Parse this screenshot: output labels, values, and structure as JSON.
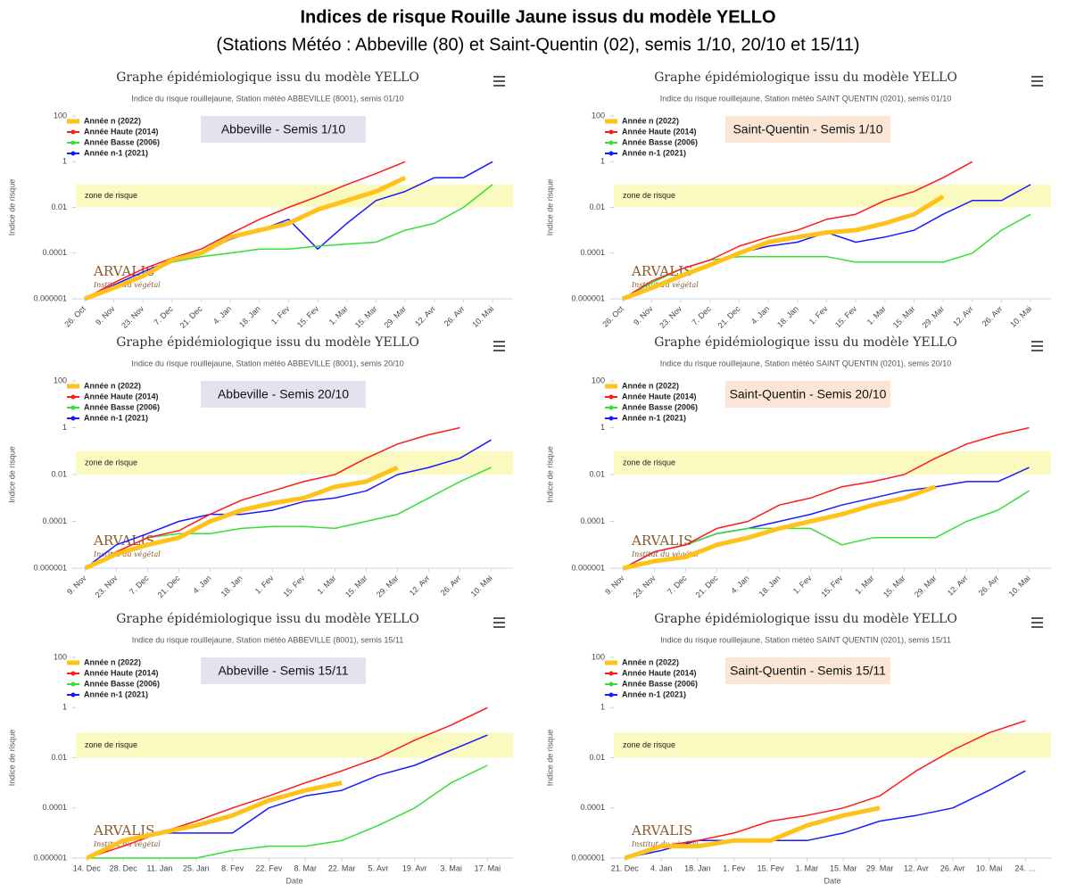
{
  "title": "Indices de risque Rouille Jaune issus du modèle YELLO",
  "subtitle": "(Stations Météo : Abbeville (80) et Saint-Quentin (02), semis 1/10, 20/10 et 15/11)",
  "chart_data": [
    {
      "type": "line",
      "title": "Graphe épidémiologique issu du modèle YELLO",
      "subtitle": "Indice du risque rouillejaune, Station météo ABBEVILLE (8001), semis 01/10",
      "box_label": "Abbeville - Semis 1/10",
      "box_color": "#e5e1ef",
      "ylabel": "Indice de risque",
      "log_y": true,
      "grid": false,
      "ylim": [
        1e-06,
        100
      ],
      "yticks": [
        {
          "value": 1e-06,
          "label": "0.000001"
        },
        0.0001,
        0.01,
        1,
        100
      ],
      "risk_zone": [
        0.01,
        0.1
      ],
      "risk_label": "zone de risque",
      "logo": "ARVALIS",
      "logo_sub": "Institut du végétal",
      "categories": [
        "26. Oct",
        "9. Nov",
        "23. Nov",
        "7. Dec",
        "21. Dec",
        "4. Jan",
        "18. Jan",
        "1. Fev",
        "15. Fev",
        "1. Mar",
        "15. Mar",
        "29. Mar",
        "12. Avr",
        "26. Avr",
        "10. Mai"
      ],
      "series": [
        {
          "name": "Année n (2022)",
          "color": "#ffc21a",
          "line_width": 5,
          "values": [
            1e-06,
            3e-06,
            1e-05,
            5e-05,
            0.0001,
            0.0005,
            0.001,
            0.002,
            0.008,
            0.02,
            0.05,
            0.2,
            null,
            null,
            null
          ]
        },
        {
          "name": "Année Haute (2014)",
          "color": "#ff1a1a",
          "line_width": 1.5,
          "values": [
            1e-06,
            5e-06,
            2e-05,
            6e-05,
            0.00015,
            0.0007,
            0.003,
            0.01,
            0.03,
            0.1,
            0.3,
            1,
            null,
            null,
            null
          ]
        },
        {
          "name": "Année Basse (2006)",
          "color": "#33e033",
          "line_width": 1.5,
          "values": [
            1e-06,
            3e-06,
            1e-05,
            4e-05,
            7e-05,
            0.0001,
            0.00015,
            0.00015,
            0.0002,
            0.00025,
            0.0003,
            0.001,
            0.002,
            0.01,
            0.1
          ]
        },
        {
          "name": "Année n-1 (2021)",
          "color": "#1a1aff",
          "line_width": 1.5,
          "values": [
            1e-06,
            4e-06,
            1.5e-05,
            5e-05,
            0.0001,
            0.0004,
            0.001,
            0.003,
            0.00015,
            0.002,
            0.02,
            0.05,
            0.2,
            0.2,
            1
          ]
        }
      ]
    },
    {
      "type": "line",
      "title": "Graphe épidémiologique issu du modèle YELLO",
      "subtitle": "Indice du risque rouillejaune, Station météo SAINT QUENTIN (0201), semis 01/10",
      "box_label": "Saint-Quentin - Semis 1/10",
      "box_color": "#fbe5d6",
      "ylabel": "Indice de risque",
      "log_y": true,
      "grid": false,
      "ylim": [
        1e-06,
        100
      ],
      "yticks": [
        {
          "value": 1e-06,
          "label": "0.000001"
        },
        0.0001,
        0.01,
        1,
        100
      ],
      "risk_zone": [
        0.01,
        0.1
      ],
      "risk_label": "zone de risque",
      "logo": "ARVALIS",
      "logo_sub": "Institut du végétal",
      "categories": [
        "26. Oct",
        "9. Nov",
        "23. Nov",
        "7. Dec",
        "21. Dec",
        "4. Jan",
        "18. Jan",
        "1. Fev",
        "15. Fev",
        "1. Mar",
        "15. Mar",
        "29. Mar",
        "12. Avr",
        "26. Avr",
        "10. Mai"
      ],
      "series": [
        {
          "name": "Année n (2022)",
          "color": "#ffc21a",
          "line_width": 5,
          "values": [
            1e-06,
            3e-06,
            1e-05,
            3e-05,
            0.0001,
            0.0003,
            0.0005,
            0.0008,
            0.001,
            0.002,
            0.005,
            0.03,
            null,
            null,
            null
          ]
        },
        {
          "name": "Année Haute (2014)",
          "color": "#ff1a1a",
          "line_width": 1.5,
          "values": [
            1e-06,
            6e-06,
            2e-05,
            5e-05,
            0.0002,
            0.0005,
            0.001,
            0.003,
            0.005,
            0.02,
            0.05,
            0.2,
            1,
            null,
            null
          ]
        },
        {
          "name": "Année Basse (2006)",
          "color": "#33e033",
          "line_width": 1.5,
          "values": [
            1e-06,
            5e-06,
            2e-05,
            5e-05,
            7e-05,
            7e-05,
            7e-05,
            7e-05,
            4e-05,
            4e-05,
            4e-05,
            4e-05,
            0.0001,
            0.001,
            0.005
          ]
        },
        {
          "name": "Année n-1 (2021)",
          "color": "#1a1aff",
          "line_width": 1.5,
          "values": [
            1e-06,
            3e-06,
            1e-05,
            3e-05,
            0.0001,
            0.0002,
            0.0003,
            0.0008,
            0.0003,
            0.0005,
            0.001,
            0.005,
            0.02,
            0.02,
            0.1
          ]
        }
      ]
    },
    {
      "type": "line",
      "title": "Graphe épidémiologique issu du modèle YELLO",
      "subtitle": "Indice du risque rouillejaune, Station météo ABBEVILLE (8001), semis 20/10",
      "box_label": "Abbeville - Semis 20/10",
      "box_color": "#e5e1ef",
      "ylabel": "Indice de risque",
      "log_y": true,
      "grid": false,
      "ylim": [
        1e-06,
        100
      ],
      "yticks": [
        {
          "value": 1e-06,
          "label": "0.000001"
        },
        0.0001,
        0.01,
        1,
        100
      ],
      "risk_zone": [
        0.01,
        0.1
      ],
      "risk_label": "zone de risque",
      "logo": "ARVALIS",
      "logo_sub": "Institut du végétal",
      "categories": [
        "9. Nov",
        "23. Nov",
        "7. Dec",
        "21. Dec",
        "4. Jan",
        "18. Jan",
        "1. Fev",
        "15. Fev",
        "1. Mar",
        "15. Mar",
        "29. Mar",
        "12. Avr",
        "26. Avr",
        "10. Mai"
      ],
      "series": [
        {
          "name": "Année n (2022)",
          "color": "#ffc21a",
          "line_width": 5,
          "values": [
            1e-06,
            4e-06,
            1e-05,
            2e-05,
            0.0001,
            0.0003,
            0.0006,
            0.001,
            0.003,
            0.005,
            0.02,
            null,
            null,
            null
          ]
        },
        {
          "name": "Année Haute (2014)",
          "color": "#ff1a1a",
          "line_width": 1.5,
          "values": [
            1e-06,
            5e-06,
            2e-05,
            4e-05,
            0.0002,
            0.0008,
            0.002,
            0.005,
            0.01,
            0.05,
            0.2,
            0.5,
            1,
            null
          ]
        },
        {
          "name": "Année Basse (2006)",
          "color": "#33e033",
          "line_width": 1.5,
          "values": [
            1e-06,
            5e-06,
            2e-05,
            3e-05,
            3e-05,
            5e-05,
            6e-05,
            6e-05,
            5e-05,
            0.0001,
            0.0002,
            0.001,
            0.005,
            0.02
          ]
        },
        {
          "name": "Année n-1 (2021)",
          "color": "#1a1aff",
          "line_width": 1.5,
          "values": [
            1e-06,
            1e-05,
            3e-05,
            0.0001,
            0.0002,
            0.0002,
            0.0003,
            0.0007,
            0.001,
            0.002,
            0.01,
            0.02,
            0.05,
            0.3
          ]
        }
      ]
    },
    {
      "type": "line",
      "title": "Graphe épidémiologique issu du modèle YELLO",
      "subtitle": "Indice du risque rouillejaune, Station météo SAINT QUENTIN (0201), semis 20/10",
      "box_label": "Saint-Quentin - Semis 20/10",
      "box_color": "#fbe5d6",
      "ylabel": "Indice de risque",
      "log_y": true,
      "grid": false,
      "ylim": [
        1e-06,
        100
      ],
      "yticks": [
        {
          "value": 1e-06,
          "label": "0.000001"
        },
        0.0001,
        0.01,
        1,
        100
      ],
      "risk_zone": [
        0.01,
        0.1
      ],
      "risk_label": "zone de risque",
      "logo": "ARVALIS",
      "logo_sub": "Institut du végétal",
      "categories": [
        "9. Nov",
        "23. Nov",
        "7. Dec",
        "21. Dec",
        "4. Jan",
        "18. Jan",
        "1. Fev",
        "15. Fev",
        "1. Mar",
        "15. Mar",
        "29. Mar",
        "12. Avr",
        "26. Avr",
        "10. Mai"
      ],
      "series": [
        {
          "name": "Année n (2022)",
          "color": "#ffc21a",
          "line_width": 5,
          "values": [
            1e-06,
            2e-06,
            3e-06,
            1e-05,
            2e-05,
            5e-05,
            0.0001,
            0.0002,
            0.0005,
            0.001,
            0.003,
            null,
            null,
            null
          ]
        },
        {
          "name": "Année Haute (2014)",
          "color": "#ff1a1a",
          "line_width": 1.5,
          "values": [
            1e-06,
            5e-06,
            1e-05,
            5e-05,
            0.0001,
            0.0005,
            0.001,
            0.003,
            0.005,
            0.01,
            0.05,
            0.2,
            0.5,
            1
          ]
        },
        {
          "name": "Année Basse (2006)",
          "color": "#33e033",
          "line_width": 1.5,
          "values": [
            1e-06,
            5e-06,
            1e-05,
            3e-05,
            5e-05,
            5e-05,
            5e-05,
            1e-05,
            2e-05,
            2e-05,
            2e-05,
            0.0001,
            0.0003,
            0.002
          ]
        },
        {
          "name": "Année n-1 (2021)",
          "color": "#1a1aff",
          "line_width": 1.5,
          "values": [
            1e-06,
            5e-06,
            1e-05,
            3e-05,
            5e-05,
            0.0001,
            0.0002,
            0.0005,
            0.001,
            0.002,
            0.003,
            0.005,
            0.005,
            0.02
          ]
        }
      ]
    },
    {
      "type": "line",
      "title": "Graphe épidémiologique issu du modèle YELLO",
      "subtitle": "Indice du risque rouillejaune, Station météo ABBEVILLE (8001), semis 15/11",
      "box_label": "Abbeville - Semis 15/11",
      "box_color": "#e5e1ef",
      "ylabel": "Indice de risque",
      "xlabel": "Date",
      "log_y": true,
      "grid": false,
      "ylim": [
        1e-06,
        100
      ],
      "yticks": [
        {
          "value": 1e-06,
          "label": "0.000001"
        },
        0.0001,
        0.01,
        1,
        100
      ],
      "risk_zone": [
        0.01,
        0.1
      ],
      "risk_label": "zone de risque",
      "logo": "ARVALIS",
      "logo_sub": "Institut du végétal",
      "categories": [
        "14. Dec",
        "28. Dec",
        "11. Jan",
        "25. Jan",
        "8. Fev",
        "22. Fev",
        "8. Mar",
        "22. Mar",
        "5. Avr",
        "19. Avr",
        "3. Mai",
        "17. Mai"
      ],
      "series": [
        {
          "name": "Année n (2022)",
          "color": "#ffc21a",
          "line_width": 5,
          "values": [
            1e-06,
            5e-06,
            1e-05,
            2e-05,
            5e-05,
            0.0002,
            0.0005,
            0.001,
            null,
            null,
            null,
            null
          ]
        },
        {
          "name": "Année Haute (2014)",
          "color": "#ff1a1a",
          "line_width": 1.5,
          "values": [
            1e-06,
            3e-06,
            1e-05,
            3e-05,
            0.0001,
            0.0003,
            0.001,
            0.003,
            0.01,
            0.05,
            0.2,
            1
          ]
        },
        {
          "name": "Année Basse (2006)",
          "color": "#33e033",
          "line_width": 1.5,
          "values": [
            1e-06,
            1e-06,
            1e-06,
            1e-06,
            2e-06,
            3e-06,
            3e-06,
            5e-06,
            2e-05,
            0.0001,
            0.001,
            0.005
          ]
        },
        {
          "name": "Année n-1 (2021)",
          "color": "#1a1aff",
          "line_width": 1.5,
          "values": [
            1e-06,
            5e-06,
            1e-05,
            1e-05,
            1e-05,
            0.0001,
            0.0003,
            0.0005,
            0.002,
            0.005,
            0.02,
            0.08
          ]
        }
      ]
    },
    {
      "type": "line",
      "title": "Graphe épidémiologique issu du modèle YELLO",
      "subtitle": "Indice du risque rouillejaune, Station météo SAINT QUENTIN (0201), semis 15/11",
      "box_label": "Saint-Quentin - Semis 15/11",
      "box_color": "#fbe5d6",
      "ylabel": "Indice de risque",
      "xlabel": "Date",
      "log_y": true,
      "grid": false,
      "ylim": [
        1e-06,
        100
      ],
      "yticks": [
        {
          "value": 1e-06,
          "label": "0.000001"
        },
        0.0001,
        0.01,
        1,
        100
      ],
      "risk_zone": [
        0.01,
        0.1
      ],
      "risk_label": "zone de risque",
      "logo": "ARVALIS",
      "logo_sub": "Institut du végétal",
      "categories": [
        "21. Dec",
        "4. Jan",
        "18. Jan",
        "1. Fev",
        "15. Fev",
        "1. Mar",
        "15. Mar",
        "29. Mar",
        "12. Avr",
        "26. Avr",
        "10. Mai",
        "24. …"
      ],
      "series": [
        {
          "name": "Année n (2022)",
          "color": "#ffc21a",
          "line_width": 5,
          "values": [
            1e-06,
            3e-06,
            3e-06,
            5e-06,
            5e-06,
            2e-05,
            5e-05,
            0.0001,
            null,
            null,
            null,
            null
          ]
        },
        {
          "name": "Année Haute (2014)",
          "color": "#ff1a1a",
          "line_width": 1.5,
          "values": [
            1e-06,
            3e-06,
            5e-06,
            1e-05,
            3e-05,
            5e-05,
            0.0001,
            0.0003,
            0.003,
            0.02,
            0.1,
            0.3
          ]
        },
        {
          "name": "Année Basse (2006)",
          "color": "#33e033",
          "line_width": 1.5,
          "values": [
            null,
            null,
            null,
            null,
            null,
            null,
            null,
            null,
            null,
            null,
            null,
            null
          ]
        },
        {
          "name": "Année n-1 (2021)",
          "color": "#1a1aff",
          "line_width": 1.5,
          "values": [
            1e-06,
            2e-06,
            5e-06,
            5e-06,
            5e-06,
            5e-06,
            1e-05,
            3e-05,
            5e-05,
            0.0001,
            0.0005,
            0.003
          ]
        }
      ]
    }
  ]
}
